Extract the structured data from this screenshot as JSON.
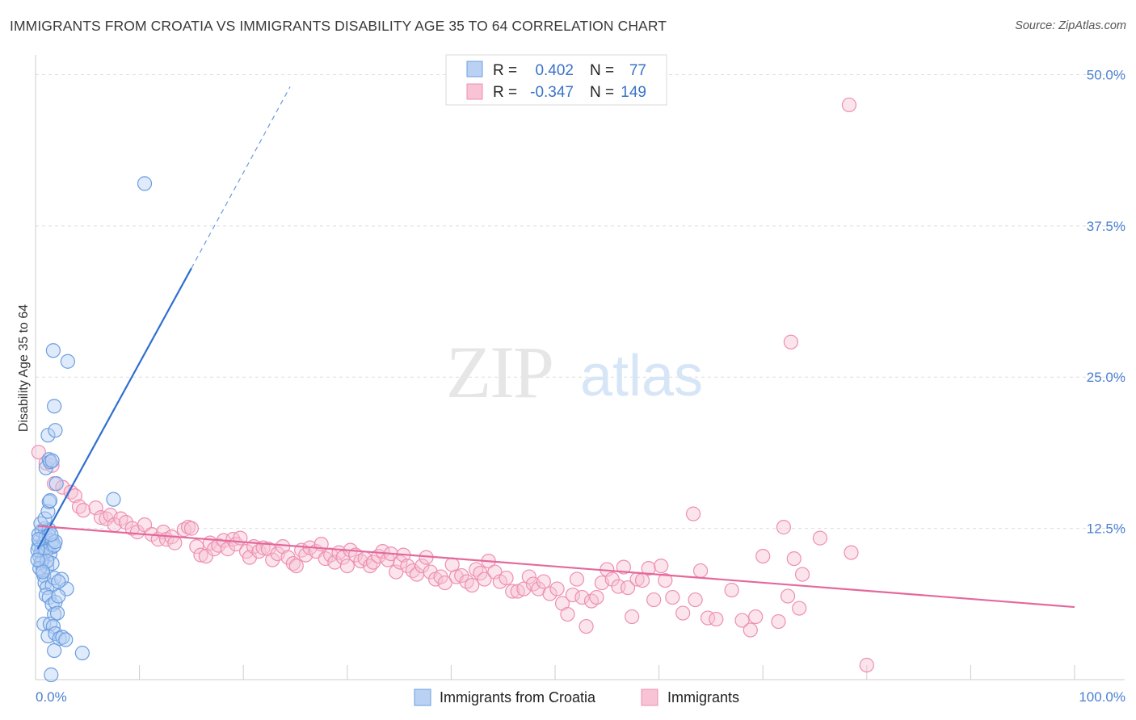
{
  "title": "IMMIGRANTS FROM CROATIA VS IMMIGRANTS DISABILITY AGE 35 TO 64 CORRELATION CHART",
  "source": "Source: ZipAtlas.com",
  "watermark": {
    "zip": "ZIP",
    "atlas": "atlas"
  },
  "colors": {
    "blue": "#6c9ee0",
    "blue_fill": "#b9d1f3",
    "blue_line": "#2f6fd0",
    "pink": "#ee8fb0",
    "pink_fill": "#f7c3d5",
    "pink_line": "#e4699a",
    "grid": "#dddddd",
    "axis_label": "#4a7fd0"
  },
  "legend_box": {
    "rows": [
      {
        "r_label": "R =",
        "r_value": "0.402",
        "n_label": "N =",
        "n_value": "77"
      },
      {
        "r_label": "R =",
        "r_value": "-0.347",
        "n_label": "N =",
        "n_value": "149"
      }
    ]
  },
  "bottom_legend": [
    "Immigrants from Croatia",
    "Immigrants"
  ],
  "chart_data": {
    "type": "scatter",
    "ylabel": "Disability Age 35 to 64",
    "x_range": [
      0,
      100
    ],
    "y_range": [
      0,
      52.5
    ],
    "x_tick_labels": [
      "0.0%",
      "100.0%"
    ],
    "y_ticks": [
      12.5,
      25.0,
      37.5,
      50.0
    ],
    "y_tick_labels": [
      "12.5%",
      "25.0%",
      "37.5%",
      "50.0%"
    ],
    "grid": true,
    "legend_position": "top-center",
    "series": [
      {
        "name": "Immigrants from Croatia",
        "R": 0.402,
        "N": 77,
        "trend": {
          "x1": 0.2,
          "y1": 10.8,
          "x2": 15.0,
          "y2": 34.0,
          "dash_to_x": 24.5,
          "dash_to_y": 49.0
        },
        "points": [
          [
            0.3,
            11.0
          ],
          [
            0.4,
            11.5
          ],
          [
            0.5,
            10.5
          ],
          [
            0.6,
            11.0
          ],
          [
            0.7,
            10.0
          ],
          [
            0.4,
            10.2
          ],
          [
            0.5,
            9.6
          ],
          [
            0.8,
            11.3
          ],
          [
            0.9,
            10.8
          ],
          [
            0.3,
            12.0
          ],
          [
            0.6,
            12.3
          ],
          [
            0.9,
            12.5
          ],
          [
            1.0,
            11.8
          ],
          [
            1.2,
            11.0
          ],
          [
            1.3,
            12.4
          ],
          [
            0.7,
            9.0
          ],
          [
            0.8,
            8.6
          ],
          [
            1.1,
            9.3
          ],
          [
            1.4,
            10.4
          ],
          [
            1.5,
            11.2
          ],
          [
            1.6,
            11.5
          ],
          [
            1.7,
            11.0
          ],
          [
            1.3,
            11.9
          ],
          [
            1.0,
            10.6
          ],
          [
            0.5,
            12.9
          ],
          [
            0.9,
            13.3
          ],
          [
            1.2,
            13.9
          ],
          [
            1.3,
            14.7
          ],
          [
            1.4,
            14.8
          ],
          [
            0.9,
            8.0
          ],
          [
            1.1,
            7.6
          ],
          [
            1.6,
            7.8
          ],
          [
            1.8,
            8.4
          ],
          [
            2.5,
            8.3
          ],
          [
            3.0,
            7.5
          ],
          [
            1.0,
            7.0
          ],
          [
            1.3,
            6.8
          ],
          [
            1.6,
            6.2
          ],
          [
            1.9,
            6.4
          ],
          [
            2.2,
            6.9
          ],
          [
            1.8,
            5.4
          ],
          [
            2.1,
            5.5
          ],
          [
            0.8,
            4.6
          ],
          [
            1.4,
            4.6
          ],
          [
            1.7,
            4.4
          ],
          [
            1.2,
            3.6
          ],
          [
            1.9,
            3.8
          ],
          [
            2.3,
            3.4
          ],
          [
            2.6,
            3.5
          ],
          [
            2.9,
            3.3
          ],
          [
            4.5,
            2.2
          ],
          [
            1.8,
            2.4
          ],
          [
            1.5,
            0.4
          ],
          [
            1.0,
            17.5
          ],
          [
            1.3,
            18.2
          ],
          [
            1.4,
            18.0
          ],
          [
            1.6,
            18.1
          ],
          [
            1.2,
            20.2
          ],
          [
            1.9,
            20.6
          ],
          [
            1.8,
            22.6
          ],
          [
            1.7,
            27.2
          ],
          [
            3.1,
            26.3
          ],
          [
            10.5,
            41.0
          ],
          [
            7.5,
            14.9
          ],
          [
            2.0,
            16.2
          ],
          [
            1.8,
            11.1
          ],
          [
            1.9,
            11.4
          ],
          [
            1.6,
            9.6
          ],
          [
            0.6,
            9.8
          ],
          [
            0.2,
            10.7
          ],
          [
            0.3,
            11.6
          ],
          [
            0.4,
            9.2
          ],
          [
            2.2,
            8.1
          ],
          [
            1.1,
            9.8
          ],
          [
            0.7,
            8.9
          ],
          [
            1.5,
            12.0
          ],
          [
            0.2,
            9.9
          ]
        ]
      },
      {
        "name": "Immigrants",
        "R": -0.347,
        "N": 149,
        "trend": {
          "x1": 0.2,
          "y1": 12.7,
          "x2": 100.0,
          "y2": 6.0
        },
        "points": [
          [
            0.3,
            18.8
          ],
          [
            1.0,
            17.9
          ],
          [
            1.6,
            17.7
          ],
          [
            1.8,
            16.2
          ],
          [
            2.6,
            15.9
          ],
          [
            3.4,
            15.5
          ],
          [
            3.8,
            15.2
          ],
          [
            4.2,
            14.3
          ],
          [
            4.6,
            14.0
          ],
          [
            5.8,
            14.2
          ],
          [
            6.3,
            13.4
          ],
          [
            6.8,
            13.3
          ],
          [
            7.2,
            13.6
          ],
          [
            7.6,
            12.8
          ],
          [
            8.2,
            13.3
          ],
          [
            8.7,
            13.0
          ],
          [
            9.3,
            12.5
          ],
          [
            9.8,
            12.2
          ],
          [
            10.5,
            12.8
          ],
          [
            11.2,
            12.0
          ],
          [
            11.8,
            11.6
          ],
          [
            12.3,
            12.2
          ],
          [
            12.6,
            11.6
          ],
          [
            13.1,
            11.8
          ],
          [
            13.4,
            11.3
          ],
          [
            14.3,
            12.4
          ],
          [
            14.7,
            12.6
          ],
          [
            15.0,
            12.5
          ],
          [
            15.5,
            11.0
          ],
          [
            15.9,
            10.3
          ],
          [
            16.4,
            10.2
          ],
          [
            16.8,
            11.3
          ],
          [
            17.2,
            10.8
          ],
          [
            17.6,
            11.1
          ],
          [
            18.1,
            11.5
          ],
          [
            18.5,
            10.8
          ],
          [
            19.0,
            11.6
          ],
          [
            19.3,
            11.2
          ],
          [
            19.7,
            11.7
          ],
          [
            20.3,
            10.6
          ],
          [
            20.6,
            10.1
          ],
          [
            21.0,
            11.0
          ],
          [
            21.5,
            10.6
          ],
          [
            21.9,
            10.9
          ],
          [
            22.4,
            10.8
          ],
          [
            22.8,
            9.9
          ],
          [
            23.3,
            10.4
          ],
          [
            23.8,
            11.0
          ],
          [
            24.3,
            10.1
          ],
          [
            24.8,
            9.6
          ],
          [
            25.1,
            9.4
          ],
          [
            25.6,
            10.7
          ],
          [
            26.0,
            10.3
          ],
          [
            26.4,
            10.9
          ],
          [
            27.0,
            10.6
          ],
          [
            27.5,
            11.2
          ],
          [
            27.9,
            10.0
          ],
          [
            28.4,
            10.3
          ],
          [
            28.8,
            9.7
          ],
          [
            29.2,
            10.5
          ],
          [
            29.6,
            10.1
          ],
          [
            30.0,
            9.4
          ],
          [
            30.3,
            10.7
          ],
          [
            30.8,
            10.3
          ],
          [
            31.3,
            9.8
          ],
          [
            31.7,
            10.0
          ],
          [
            32.2,
            9.4
          ],
          [
            32.5,
            9.7
          ],
          [
            33.0,
            10.2
          ],
          [
            33.4,
            10.6
          ],
          [
            33.9,
            9.9
          ],
          [
            34.2,
            10.4
          ],
          [
            34.7,
            8.9
          ],
          [
            35.1,
            9.7
          ],
          [
            35.4,
            10.3
          ],
          [
            35.8,
            9.4
          ],
          [
            36.3,
            9.0
          ],
          [
            36.7,
            8.7
          ],
          [
            37.2,
            9.4
          ],
          [
            37.6,
            10.1
          ],
          [
            38.0,
            8.9
          ],
          [
            38.5,
            8.3
          ],
          [
            39.0,
            8.5
          ],
          [
            39.4,
            8.0
          ],
          [
            40.1,
            9.5
          ],
          [
            40.5,
            8.5
          ],
          [
            41.0,
            8.6
          ],
          [
            41.5,
            8.1
          ],
          [
            42.0,
            7.8
          ],
          [
            42.4,
            9.1
          ],
          [
            42.8,
            8.8
          ],
          [
            43.2,
            8.3
          ],
          [
            43.6,
            9.8
          ],
          [
            44.2,
            8.9
          ],
          [
            44.7,
            8.1
          ],
          [
            45.3,
            8.4
          ],
          [
            45.9,
            7.3
          ],
          [
            46.4,
            7.3
          ],
          [
            47.0,
            7.5
          ],
          [
            47.5,
            8.5
          ],
          [
            47.9,
            7.9
          ],
          [
            48.4,
            7.5
          ],
          [
            48.9,
            8.1
          ],
          [
            49.5,
            7.1
          ],
          [
            50.2,
            7.5
          ],
          [
            50.7,
            6.3
          ],
          [
            51.2,
            5.4
          ],
          [
            51.7,
            7.0
          ],
          [
            52.1,
            8.3
          ],
          [
            52.6,
            6.8
          ],
          [
            53.0,
            4.4
          ],
          [
            53.5,
            6.5
          ],
          [
            54.0,
            6.8
          ],
          [
            54.5,
            8.0
          ],
          [
            55.0,
            9.1
          ],
          [
            55.5,
            8.3
          ],
          [
            56.1,
            7.7
          ],
          [
            56.6,
            9.3
          ],
          [
            57.0,
            7.6
          ],
          [
            57.4,
            5.2
          ],
          [
            57.9,
            8.3
          ],
          [
            58.4,
            8.2
          ],
          [
            59.0,
            9.2
          ],
          [
            59.5,
            6.6
          ],
          [
            60.2,
            9.4
          ],
          [
            60.6,
            8.2
          ],
          [
            61.3,
            6.8
          ],
          [
            62.3,
            5.5
          ],
          [
            63.5,
            6.6
          ],
          [
            64.0,
            9.0
          ],
          [
            64.7,
            5.1
          ],
          [
            65.5,
            5.0
          ],
          [
            67.0,
            7.4
          ],
          [
            68.0,
            4.9
          ],
          [
            68.8,
            4.1
          ],
          [
            69.3,
            5.2
          ],
          [
            70.0,
            10.2
          ],
          [
            71.5,
            4.8
          ],
          [
            72.0,
            12.6
          ],
          [
            72.4,
            6.9
          ],
          [
            73.0,
            10.0
          ],
          [
            73.5,
            5.9
          ],
          [
            73.8,
            8.7
          ],
          [
            75.5,
            11.7
          ],
          [
            78.5,
            10.5
          ],
          [
            63.3,
            13.7
          ],
          [
            72.7,
            27.9
          ],
          [
            78.3,
            47.5
          ],
          [
            80.0,
            1.2
          ]
        ]
      }
    ]
  }
}
